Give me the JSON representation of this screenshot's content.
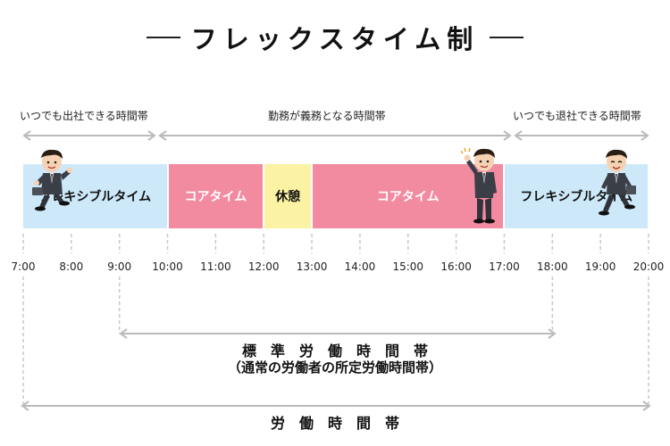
{
  "title": "フレックスタイム制",
  "top_labels": {
    "left": "いつでも出社できる時間帯",
    "middle": "勤務が義務となる時間帯",
    "right": "いつでも退社できる時間帯"
  },
  "segments": [
    {
      "label": "フレキシブルタイム",
      "start": 7,
      "end": 10,
      "kind": "flex",
      "color": "#cde8f8"
    },
    {
      "label": "コアタイム",
      "start": 10,
      "end": 12,
      "kind": "core",
      "color": "#f28aa0"
    },
    {
      "label": "休憩",
      "start": 12,
      "end": 13,
      "kind": "break",
      "color": "#fbf2a3"
    },
    {
      "label": "コアタイム",
      "start": 13,
      "end": 17,
      "kind": "core",
      "color": "#f28aa0"
    },
    {
      "label": "フレキシブルタイム",
      "start": 17,
      "end": 20,
      "kind": "flex",
      "color": "#cde8f8"
    }
  ],
  "time_ticks": [
    "7:00",
    "8:00",
    "9:00",
    "10:00",
    "11:00",
    "12:00",
    "13:00",
    "14:00",
    "15:00",
    "16:00",
    "17:00",
    "18:00",
    "19:00",
    "20:00"
  ],
  "standard_hours": {
    "label": "標　準　労　働　時　間　帯",
    "sublabel": "（通常の労働者の所定労働時間帯）",
    "start": 9,
    "end": 18
  },
  "working_hours": {
    "label": "労　働　時　間　帯",
    "start": 7,
    "end": 20
  },
  "icons": [
    "businessman-running-icon",
    "businessman-waving-icon",
    "businessman-leaving-icon"
  ]
}
